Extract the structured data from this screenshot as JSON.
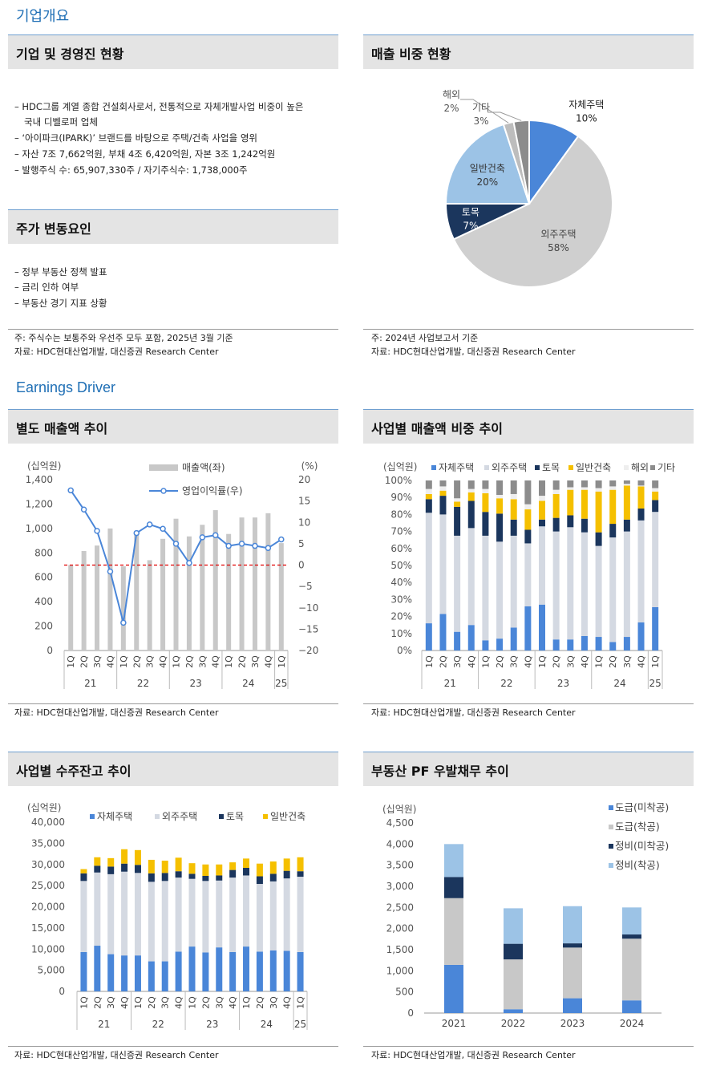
{
  "sections": {
    "company": "기업개요",
    "earnings": "Earnings Driver"
  },
  "panels": {
    "overview": {
      "title": "기업 및 경영진 현황",
      "lines": [
        "– HDC그룹 계열 종합 건설회사로서, 전통적으로 자체개발사업 비중이 높은",
        "국내 디벨로퍼 업체",
        "– ‘아이파크(IPARK)’ 브랜드를 바탕으로 주택/건축 사업을 영위",
        "– 자산 7조 7,662억원, 부채 4조 6,420억원, 자본 3조 1,242억원",
        "– 발행주식 수: 65,907,330주 / 자기주식수: 1,738,000주"
      ]
    },
    "drivers": {
      "title": "주가 변동요인",
      "lines": [
        "– 정부 부동산 정책 발표",
        "– 금리 인하 여부",
        "– 부동산 경기 지표 상황"
      ]
    },
    "overview_notes": [
      "주: 주식수는 보통주와 우선주 모두 포함, 2025년 3월 기준",
      "자료: HDC현대산업개발, 대신증권 Research Center"
    ],
    "sales_mix": {
      "title": "매출 비중 현황",
      "notes": [
        "주: 2024년 사업보고서 기준",
        "자료: HDC현대산업개발, 대신증권 Research Center"
      ]
    },
    "sales_trend": {
      "title": "별도 매출액 추이",
      "note": "자료: HDC현대산업개발, 대신증권 Research Center"
    },
    "segment_trend": {
      "title": "사업별 매출액 비중 추이",
      "note": "자료: HDC현대산업개발, 대신증권 Research Center"
    },
    "backlog": {
      "title": "사업별 수주잔고 추이",
      "note": "자료: HDC현대산업개발, 대신증권 Research Center"
    },
    "pf": {
      "title": "부동산 PF 우발채무 추이",
      "note": "자료: HDC현대산업개발, 대신증권 Research Center"
    }
  },
  "chart_data": [
    {
      "id": "sales_mix",
      "type": "pie",
      "labels": [
        "자체주택",
        "외주주택",
        "토목",
        "일반건축",
        "해외",
        "기타"
      ],
      "values": [
        10,
        58,
        7,
        20,
        2,
        3
      ],
      "value_labels": [
        "10%",
        "58%",
        "7%",
        "20%",
        "2%",
        "3%"
      ],
      "colors": [
        "#4a86d8",
        "#cfcfcf",
        "#1b365d",
        "#9cc3e6",
        "#bdbdbd",
        "#8c8c8c"
      ]
    },
    {
      "id": "sales_trend",
      "type": "bar+line",
      "categories": [
        "1Q",
        "2Q",
        "3Q",
        "4Q",
        "1Q",
        "2Q",
        "3Q",
        "4Q",
        "1Q",
        "2Q",
        "3Q",
        "4Q",
        "1Q",
        "2Q",
        "3Q",
        "4Q",
        "1Q"
      ],
      "groups": [
        {
          "label": "21",
          "span": 4
        },
        {
          "label": "22",
          "span": 4
        },
        {
          "label": "23",
          "span": 4
        },
        {
          "label": "24",
          "span": 4
        },
        {
          "label": "25",
          "span": 1
        }
      ],
      "series": [
        {
          "name": "매출액(좌)",
          "axis": "left",
          "values": [
            700,
            815,
            860,
            1000,
            690,
            975,
            740,
            915,
            1080,
            935,
            1030,
            1150,
            955,
            1090,
            1090,
            1125,
            880
          ],
          "color": "#c8c8c8"
        },
        {
          "name": "영업이익률(우)",
          "axis": "right",
          "values": [
            17.5,
            13,
            8,
            -1.5,
            -13.5,
            7.5,
            9.5,
            8.5,
            5,
            0.5,
            6.5,
            7,
            4.5,
            5,
            4.5,
            4,
            6
          ],
          "color": "#4a86d8"
        }
      ],
      "ylabel_left": "(십억원)",
      "ylabel_right": "(%)",
      "left_ticks": [
        "1,400",
        "1,200",
        "1,000",
        "800",
        "600",
        "400",
        "200",
        "0"
      ],
      "right_ticks": [
        "20",
        "15",
        "10",
        "5",
        "0",
        "−5",
        "−10",
        "−15",
        "−20"
      ],
      "ylim_left": [
        0,
        1400
      ],
      "ylim_right": [
        -20,
        20
      ],
      "zero_line_color": "#e00000"
    },
    {
      "id": "segment_trend",
      "type": "bar",
      "categories": [
        "1Q",
        "2Q",
        "3Q",
        "4Q",
        "1Q",
        "2Q",
        "3Q",
        "4Q",
        "1Q",
        "2Q",
        "3Q",
        "4Q",
        "1Q",
        "2Q",
        "3Q",
        "4Q",
        "1Q"
      ],
      "groups": [
        {
          "label": "21",
          "span": 4
        },
        {
          "label": "22",
          "span": 4
        },
        {
          "label": "23",
          "span": 4
        },
        {
          "label": "24",
          "span": 4
        },
        {
          "label": "25",
          "span": 1
        }
      ],
      "ylabel": "(십억원)",
      "ticks": [
        "100%",
        "90%",
        "80%",
        "70%",
        "60%",
        "50%",
        "40%",
        "30%",
        "20%",
        "10%",
        "0%"
      ],
      "ylim": [
        0,
        100
      ],
      "series": [
        {
          "name": "자체주택",
          "color": "#4a86d8",
          "values": [
            16,
            21.5,
            11,
            15,
            6,
            7,
            13.5,
            26,
            27,
            6.5,
            6.5,
            8.5,
            8,
            5,
            8,
            16.5,
            25.5
          ]
        },
        {
          "name": "외주주택",
          "color": "#d4d9e2",
          "values": [
            65,
            58.5,
            56.5,
            57,
            61.5,
            57,
            54,
            37,
            46,
            63.5,
            66,
            61,
            53.5,
            61.5,
            62,
            60,
            56
          ]
        },
        {
          "name": "토목",
          "color": "#1b365d",
          "values": [
            8,
            11,
            17,
            16,
            14,
            16.5,
            9.5,
            8,
            4,
            8,
            7,
            8,
            8,
            8,
            7,
            7,
            7
          ]
        },
        {
          "name": "일반건축",
          "color": "#f5c000",
          "values": [
            3,
            3,
            3,
            5,
            11,
            9,
            12,
            12,
            11,
            14,
            15,
            17,
            24,
            20,
            20,
            13,
            5
          ]
        },
        {
          "name": "해외",
          "color": "#eeeeee",
          "values": [
            3,
            2.5,
            2,
            2,
            2.5,
            2,
            3,
            3,
            3,
            2.5,
            1.5,
            1.5,
            2,
            2,
            1,
            0.5,
            2
          ]
        },
        {
          "name": "기타",
          "color": "#8c8c8c",
          "values": [
            5,
            3.5,
            10.5,
            5,
            5,
            8.5,
            8,
            14,
            9,
            5.5,
            4,
            4,
            4.5,
            3.5,
            2,
            3,
            4.5
          ]
        }
      ]
    },
    {
      "id": "backlog",
      "type": "bar",
      "categories": [
        "1Q",
        "2Q",
        "3Q",
        "4Q",
        "1Q",
        "2Q",
        "3Q",
        "4Q",
        "1Q",
        "2Q",
        "3Q",
        "4Q",
        "1Q",
        "2Q",
        "3Q",
        "4Q",
        "1Q"
      ],
      "groups": [
        {
          "label": "21",
          "span": 4
        },
        {
          "label": "22",
          "span": 4
        },
        {
          "label": "23",
          "span": 4
        },
        {
          "label": "24",
          "span": 4
        },
        {
          "label": "25",
          "span": 1
        }
      ],
      "ylabel": "(십억원)",
      "ticks": [
        "40,000",
        "35,000",
        "30,000",
        "25,000",
        "20,000",
        "15,000",
        "10,000",
        "5,000",
        "0"
      ],
      "ylim": [
        0,
        40000
      ],
      "series": [
        {
          "name": "자체주택",
          "color": "#4a86d8",
          "values": [
            9300,
            10800,
            8800,
            8500,
            8500,
            7100,
            7100,
            9400,
            10600,
            9200,
            10400,
            9300,
            10600,
            9400,
            9700,
            9600,
            9300
          ]
        },
        {
          "name": "외주주택",
          "color": "#d4d9e2",
          "values": [
            16800,
            17300,
            18900,
            19800,
            19500,
            18800,
            19000,
            17500,
            16000,
            16900,
            15800,
            17600,
            16800,
            16000,
            16300,
            17100,
            17800
          ]
        },
        {
          "name": "토목",
          "color": "#1b365d",
          "values": [
            1800,
            1600,
            1800,
            1900,
            1900,
            2000,
            1900,
            1500,
            1200,
            1200,
            1200,
            1800,
            1800,
            1800,
            1800,
            1800,
            1300
          ]
        },
        {
          "name": "일반건축",
          "color": "#f5c000",
          "values": [
            1000,
            2000,
            2000,
            3400,
            3500,
            3200,
            2900,
            3200,
            2500,
            2700,
            2600,
            1800,
            2200,
            3000,
            2900,
            2900,
            3300
          ]
        }
      ]
    },
    {
      "id": "pf",
      "type": "bar",
      "categories": [
        "2021",
        "2022",
        "2023",
        "2024"
      ],
      "ylabel": "(십억원)",
      "ticks": [
        "4,500",
        "4,000",
        "3,500",
        "3,000",
        "2,500",
        "2,000",
        "1,500",
        "1,000",
        "500",
        "0"
      ],
      "ylim": [
        0,
        4500
      ],
      "series": [
        {
          "name": "도급(미착공)",
          "color": "#4a86d8",
          "values": [
            1140,
            90,
            350,
            300
          ]
        },
        {
          "name": "도급(착공)",
          "color": "#c8c8c8",
          "values": [
            1580,
            1180,
            1200,
            1460
          ]
        },
        {
          "name": "정비(미착공)",
          "color": "#1b365d",
          "values": [
            500,
            370,
            100,
            100
          ]
        },
        {
          "name": "정비(착공)",
          "color": "#9cc3e6",
          "values": [
            780,
            840,
            880,
            640
          ]
        }
      ]
    }
  ]
}
